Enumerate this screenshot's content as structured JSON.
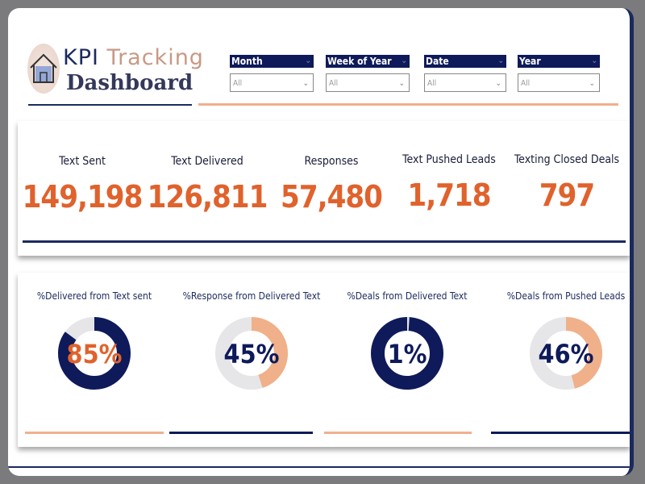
{
  "header": {
    "logo_line1_a": "KPI ",
    "logo_line1_b": "Tracking",
    "logo_line2": "Dashboard"
  },
  "filters": [
    {
      "label": "Month",
      "value": "All"
    },
    {
      "label": "Week of Year",
      "value": "All"
    },
    {
      "label": "Date",
      "value": "All"
    },
    {
      "label": "Year",
      "value": "All"
    }
  ],
  "kpis": [
    {
      "label": "Text Sent",
      "value": "149,198"
    },
    {
      "label": "Text Delivered",
      "value": "126,811"
    },
    {
      "label": "Responses",
      "value": "57,480"
    },
    {
      "label": "Text Pushed Leads",
      "value": "1,718"
    },
    {
      "label": "Texting Closed Deals",
      "value": "797"
    }
  ],
  "donuts": [
    {
      "label": "%Delivered from Text sent",
      "text": "85%",
      "percent": 85,
      "value_color": "#0e1a5a",
      "rest_color": "#e6e5e8",
      "text_color": "#e0622c",
      "underline": "#f2b08e"
    },
    {
      "label": "%Response from Delivered Text",
      "text": "45%",
      "percent": 45,
      "value_color": "#f0b08a",
      "rest_color": "#e6e5e8",
      "text_color": "#0e1a5a",
      "underline": "#0e1a5a"
    },
    {
      "label": "%Deals from Delivered Text",
      "text": "1%",
      "percent": 1,
      "value_color": "#e6e5e8",
      "rest_color": "#0e1a5a",
      "text_color": "#0e1a5a",
      "underline": "#f2b08e"
    },
    {
      "label": "%Deals from Pushed Leads",
      "text": "46%",
      "percent": 46,
      "value_color": "#f0b08a",
      "rest_color": "#e6e5e8",
      "text_color": "#0e1a5a",
      "underline": "#0e1a5a"
    }
  ],
  "colors": {
    "navy": "#0e1a5a",
    "orange": "#e0622c",
    "peach": "#f2b08e"
  },
  "icons": {
    "logo": "house-icon",
    "dropdown": "chevron-down-icon"
  }
}
